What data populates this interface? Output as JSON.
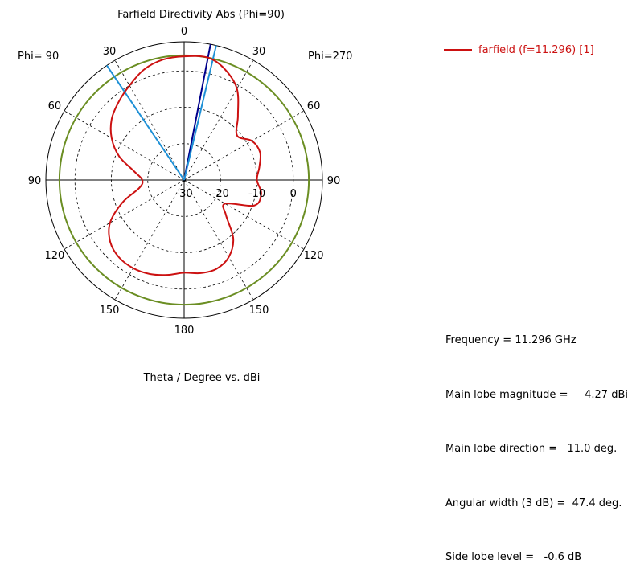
{
  "chart_data": {
    "type": "polar",
    "title": "Farfield Directivity Abs (Phi=90)",
    "xlabel": "Theta / Degree vs. dBi",
    "left_half_label": "Phi= 90",
    "right_half_label": "Phi=270",
    "angle_ticks": [
      {
        "label": "0",
        "angle": 0
      },
      {
        "label": "30",
        "angle": -30
      },
      {
        "label": "30",
        "angle": 30
      },
      {
        "label": "60",
        "angle": -60
      },
      {
        "label": "60",
        "angle": 60
      },
      {
        "label": "90",
        "angle": -90
      },
      {
        "label": "90",
        "angle": 90
      },
      {
        "label": "120",
        "angle": -120
      },
      {
        "label": "120",
        "angle": 120
      },
      {
        "label": "150",
        "angle": -150
      },
      {
        "label": "150",
        "angle": 150
      },
      {
        "label": "180",
        "angle": 180
      }
    ],
    "radial_ticks": [
      {
        "label": "-30",
        "value": -30
      },
      {
        "label": "-20",
        "value": -20
      },
      {
        "label": "-10",
        "value": -10
      },
      {
        "label": "0",
        "value": 0
      }
    ],
    "r_range": [
      -30,
      8
    ],
    "series": [
      {
        "name": "farfield (f=11.296) [1]",
        "color": "#cc1111",
        "points": [
          {
            "theta": -180,
            "dbi": -4.5
          },
          {
            "theta": -170,
            "dbi": -3.5
          },
          {
            "theta": -160,
            "dbi": -2.5
          },
          {
            "theta": -150,
            "dbi": -2.0
          },
          {
            "theta": -140,
            "dbi": -2.2
          },
          {
            "theta": -130,
            "dbi": -3.5
          },
          {
            "theta": -120,
            "dbi": -6.5
          },
          {
            "theta": -110,
            "dbi": -12.0
          },
          {
            "theta": -100,
            "dbi": -17.5
          },
          {
            "theta": -90,
            "dbi": -18.5
          },
          {
            "theta": -80,
            "dbi": -16.0
          },
          {
            "theta": -70,
            "dbi": -11.0
          },
          {
            "theta": -60,
            "dbi": -7.0
          },
          {
            "theta": -50,
            "dbi": -4.0
          },
          {
            "theta": -40,
            "dbi": -2.0
          },
          {
            "theta": -30,
            "dbi": 0.0
          },
          {
            "theta": -20,
            "dbi": 2.3
          },
          {
            "theta": -10,
            "dbi": 3.6
          },
          {
            "theta": 0,
            "dbi": 4.0
          },
          {
            "theta": 11,
            "dbi": 4.27
          },
          {
            "theta": 20,
            "dbi": 2.5
          },
          {
            "theta": 30,
            "dbi": -1.0
          },
          {
            "theta": 40,
            "dbi": -7.0
          },
          {
            "theta": 50,
            "dbi": -11.0
          },
          {
            "theta": 60,
            "dbi": -8.5
          },
          {
            "theta": 70,
            "dbi": -7.8
          },
          {
            "theta": 80,
            "dbi": -9.0
          },
          {
            "theta": 90,
            "dbi": -10.0
          },
          {
            "theta": 100,
            "dbi": -8.5
          },
          {
            "theta": 110,
            "dbi": -9.5
          },
          {
            "theta": 120,
            "dbi": -17.0
          },
          {
            "theta": 130,
            "dbi": -15.0
          },
          {
            "theta": 140,
            "dbi": -9.0
          },
          {
            "theta": 150,
            "dbi": -5.5
          },
          {
            "theta": 160,
            "dbi": -4.0
          },
          {
            "theta": 170,
            "dbi": -4.0
          },
          {
            "theta": 180,
            "dbi": -4.5
          }
        ]
      }
    ],
    "reference_circle": {
      "value": 4.27,
      "color": "#6b8e23"
    },
    "markers": [
      {
        "theta": 11,
        "color": "#00008b",
        "kind": "main lobe direction"
      },
      {
        "theta": -34,
        "color": "#1e90d6",
        "kind": "3 dB beamwidth limit"
      },
      {
        "theta": 13.4,
        "color": "#1e90d6",
        "kind": "3 dB beamwidth limit"
      }
    ],
    "grid": true
  },
  "legend": {
    "label": "farfield (f=11.296) [1]",
    "color": "#cc1111"
  },
  "stats": [
    "Frequency = 11.296 GHz",
    "Main lobe magnitude =     4.27 dBi",
    "Main lobe direction =   11.0 deg.",
    "Angular width (3 dB) =  47.4 deg.",
    "Side lobe level =   -0.6 dB"
  ]
}
